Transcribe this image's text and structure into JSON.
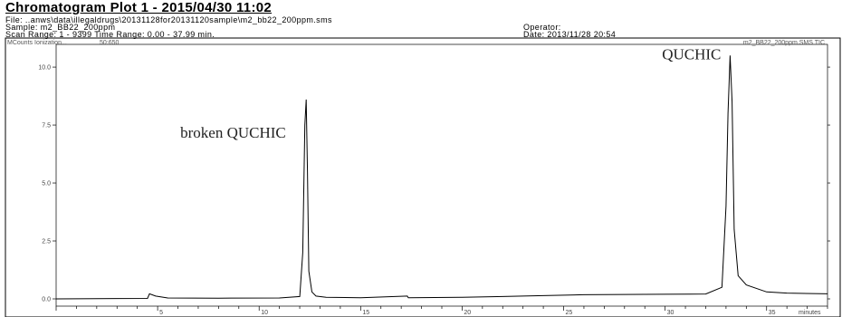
{
  "header": {
    "title": "Chromatogram Plot 1 - 2015/04/30 11:02",
    "file_line": "File: ..anws\\data\\illegaldrugs\\20131128for20131120sample\\m2_bb22_200ppm.sms",
    "sample_line": "Sample: m2_BB22_200ppm",
    "scan_line": "Scan Range: 1 - 9399 Time Range: 0.00 - 37.99 min.",
    "operator_line": "Operator:",
    "date_line": "Date: 2013/11/28 20:54"
  },
  "plot": {
    "yunit": "MCounts",
    "ionization": "Ionization...",
    "ionization_range": "50:650",
    "trace_name": "m2_BB22_200ppm.SMS TIC",
    "xunit": "minutes"
  },
  "chart_data": {
    "type": "line",
    "title": "Chromatogram Plot 1 - 2015/04/30 11:02",
    "xlabel": "minutes",
    "ylabel": "MCounts",
    "xlim": [
      0,
      38
    ],
    "ylim": [
      -0.3,
      10.8
    ],
    "yticks": [
      "0.0",
      "2.5",
      "5.0",
      "7.5",
      "10.0"
    ],
    "xticks": [
      "5",
      "10",
      "15",
      "20",
      "25",
      "30",
      "35"
    ],
    "annotations": [
      {
        "text": "broken QUCHIC",
        "x": 12.3,
        "y": 7.5
      },
      {
        "text": "QUCHIC",
        "x": 33.2,
        "y": 10.5
      }
    ],
    "series": [
      {
        "x": [
          0.0,
          4.5,
          4.6,
          4.9,
          5.5,
          8.0,
          11.0,
          12.0,
          12.15,
          12.25,
          12.32,
          12.38,
          12.45,
          12.6,
          12.8,
          13.3,
          15.0,
          17.3,
          17.35,
          20.0,
          22.0,
          24.0,
          26.0,
          30.0,
          32.0,
          32.8,
          33.0,
          33.1,
          33.2,
          33.3,
          33.4,
          33.6,
          34.0,
          35.0,
          36.0,
          38.0
        ],
        "y": [
          0.0,
          0.02,
          0.22,
          0.12,
          0.04,
          0.03,
          0.04,
          0.1,
          2.0,
          7.5,
          8.6,
          5.5,
          1.2,
          0.3,
          0.12,
          0.07,
          0.05,
          0.12,
          0.05,
          0.07,
          0.1,
          0.14,
          0.18,
          0.2,
          0.21,
          0.5,
          4.0,
          8.0,
          10.5,
          8.5,
          3.0,
          1.0,
          0.6,
          0.3,
          0.25,
          0.22
        ]
      }
    ]
  }
}
